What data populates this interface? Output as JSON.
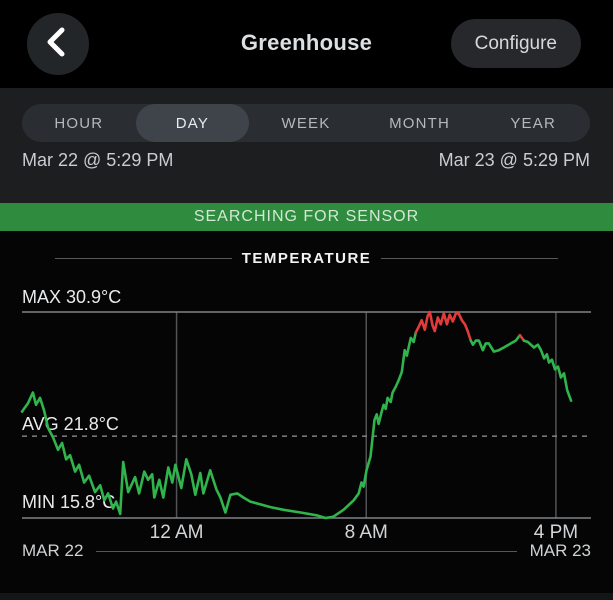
{
  "header": {
    "title": "Greenhouse",
    "configure_label": "Configure",
    "back_icon": "chevron-left"
  },
  "tabs": {
    "items": [
      "HOUR",
      "DAY",
      "WEEK",
      "MONTH",
      "YEAR"
    ],
    "selected_index": 1
  },
  "range": {
    "start": "Mar 22 @ 5:29 PM",
    "end": "Mar 23 @ 5:29 PM"
  },
  "banner": {
    "text": "SEARCHING FOR SENSOR",
    "color": "#2f8c3f"
  },
  "section": {
    "title": "TEMPERATURE"
  },
  "stats": {
    "max_label": "MAX 30.9°C",
    "avg_label": "AVG 21.8°C",
    "min_label": "MIN 15.8°C"
  },
  "axis": {
    "ticks": [
      "12 AM",
      "8 AM",
      "4 PM"
    ],
    "tick_hours": [
      6.52,
      14.52,
      22.52
    ],
    "start_day": "MAR 22",
    "end_day": "MAR 23"
  },
  "chart_data": {
    "type": "line",
    "title": "TEMPERATURE",
    "x_unit": "hours since Mar 22 5:29 PM",
    "x_range_hours": [
      0,
      24
    ],
    "y_unit": "°C",
    "max_c": 30.9,
    "avg_c": 21.8,
    "min_c": 15.8,
    "line_color": "#2fb54c",
    "alert_color": "#e13b3b",
    "grid_color": "#505356",
    "bound_line_color": "#808386",
    "avg_line_color": "#96999c",
    "red_ranges_hours": [
      [
        16.58,
        18.95
      ],
      [
        20.92,
        21.1
      ]
    ],
    "points": [
      [
        0,
        23.6
      ],
      [
        0.25,
        24.2
      ],
      [
        0.46,
        25.0
      ],
      [
        0.59,
        24.1
      ],
      [
        0.76,
        24.6
      ],
      [
        0.93,
        23.7
      ],
      [
        1.1,
        22.4
      ],
      [
        1.31,
        21.7
      ],
      [
        1.52,
        20.8
      ],
      [
        1.69,
        21.3
      ],
      [
        1.86,
        20.1
      ],
      [
        2.03,
        20.4
      ],
      [
        2.24,
        19.2
      ],
      [
        2.41,
        19.7
      ],
      [
        2.62,
        18.4
      ],
      [
        2.83,
        18.9
      ],
      [
        3.08,
        17.7
      ],
      [
        3.3,
        18.2
      ],
      [
        3.47,
        17.1
      ],
      [
        3.63,
        17.6
      ],
      [
        3.84,
        16.5
      ],
      [
        3.97,
        17.0
      ],
      [
        4.14,
        16.1
      ],
      [
        4.27,
        19.9
      ],
      [
        4.48,
        17.7
      ],
      [
        4.77,
        18.8
      ],
      [
        4.94,
        17.6
      ],
      [
        5.16,
        19.2
      ],
      [
        5.32,
        18.6
      ],
      [
        5.49,
        19.0
      ],
      [
        5.58,
        17.3
      ],
      [
        5.79,
        18.6
      ],
      [
        5.96,
        17.3
      ],
      [
        6.17,
        19.5
      ],
      [
        6.34,
        18.4
      ],
      [
        6.47,
        19.7
      ],
      [
        6.72,
        18.0
      ],
      [
        6.93,
        20.1
      ],
      [
        7.14,
        19.0
      ],
      [
        7.31,
        17.5
      ],
      [
        7.52,
        19.1
      ],
      [
        7.65,
        17.6
      ],
      [
        7.94,
        19.3
      ],
      [
        8.2,
        17.9
      ],
      [
        8.37,
        17.3
      ],
      [
        8.58,
        16.2
      ],
      [
        8.79,
        17.5
      ],
      [
        9.08,
        17.6
      ],
      [
        9.34,
        17.3
      ],
      [
        9.63,
        17.0
      ],
      [
        10.06,
        16.8
      ],
      [
        10.48,
        16.6
      ],
      [
        11.03,
        16.4
      ],
      [
        11.75,
        16.2
      ],
      [
        12.42,
        16.0
      ],
      [
        12.8,
        15.8
      ],
      [
        13.14,
        15.9
      ],
      [
        13.56,
        16.4
      ],
      [
        13.99,
        17.1
      ],
      [
        14.2,
        17.6
      ],
      [
        14.32,
        18.4
      ],
      [
        14.41,
        18.1
      ],
      [
        14.53,
        19.3
      ],
      [
        14.7,
        20.3
      ],
      [
        14.79,
        21.7
      ],
      [
        14.87,
        23.0
      ],
      [
        14.96,
        23.4
      ],
      [
        15.04,
        22.7
      ],
      [
        15.17,
        23.6
      ],
      [
        15.25,
        24.1
      ],
      [
        15.34,
        23.8
      ],
      [
        15.42,
        24.6
      ],
      [
        15.55,
        24.3
      ],
      [
        15.63,
        25.0
      ],
      [
        15.76,
        25.4
      ],
      [
        15.89,
        25.9
      ],
      [
        16.02,
        26.5
      ],
      [
        16.14,
        28.1
      ],
      [
        16.23,
        27.7
      ],
      [
        16.4,
        29.0
      ],
      [
        16.52,
        28.7
      ],
      [
        16.61,
        29.4
      ],
      [
        16.73,
        29.8
      ],
      [
        16.86,
        30.3
      ],
      [
        16.99,
        29.6
      ],
      [
        17.11,
        30.6
      ],
      [
        17.2,
        30.9
      ],
      [
        17.32,
        29.9
      ],
      [
        17.41,
        29.5
      ],
      [
        17.54,
        30.5
      ],
      [
        17.66,
        30.0
      ],
      [
        17.79,
        30.8
      ],
      [
        17.92,
        30.0
      ],
      [
        18.04,
        30.7
      ],
      [
        18.17,
        30.2
      ],
      [
        18.3,
        30.8
      ],
      [
        18.42,
        30.8
      ],
      [
        18.55,
        30.3
      ],
      [
        18.68,
        30.0
      ],
      [
        18.8,
        29.5
      ],
      [
        18.93,
        28.8
      ],
      [
        19.02,
        28.5
      ],
      [
        19.14,
        28.8
      ],
      [
        19.27,
        28.8
      ],
      [
        19.44,
        28.1
      ],
      [
        19.56,
        28.6
      ],
      [
        19.69,
        28.6
      ],
      [
        19.9,
        28.0
      ],
      [
        20.11,
        28.1
      ],
      [
        20.32,
        28.3
      ],
      [
        20.62,
        28.6
      ],
      [
        20.83,
        28.8
      ],
      [
        21.0,
        29.2
      ],
      [
        21.17,
        28.8
      ],
      [
        21.34,
        28.7
      ],
      [
        21.59,
        28.3
      ],
      [
        21.76,
        28.5
      ],
      [
        21.89,
        28.1
      ],
      [
        22.02,
        27.5
      ],
      [
        22.14,
        27.8
      ],
      [
        22.23,
        27.2
      ],
      [
        22.35,
        27.4
      ],
      [
        22.48,
        26.7
      ],
      [
        22.61,
        26.9
      ],
      [
        22.73,
        26.1
      ],
      [
        22.86,
        26.4
      ],
      [
        22.99,
        25.2
      ],
      [
        23.07,
        24.8
      ],
      [
        23.16,
        24.4
      ]
    ]
  }
}
